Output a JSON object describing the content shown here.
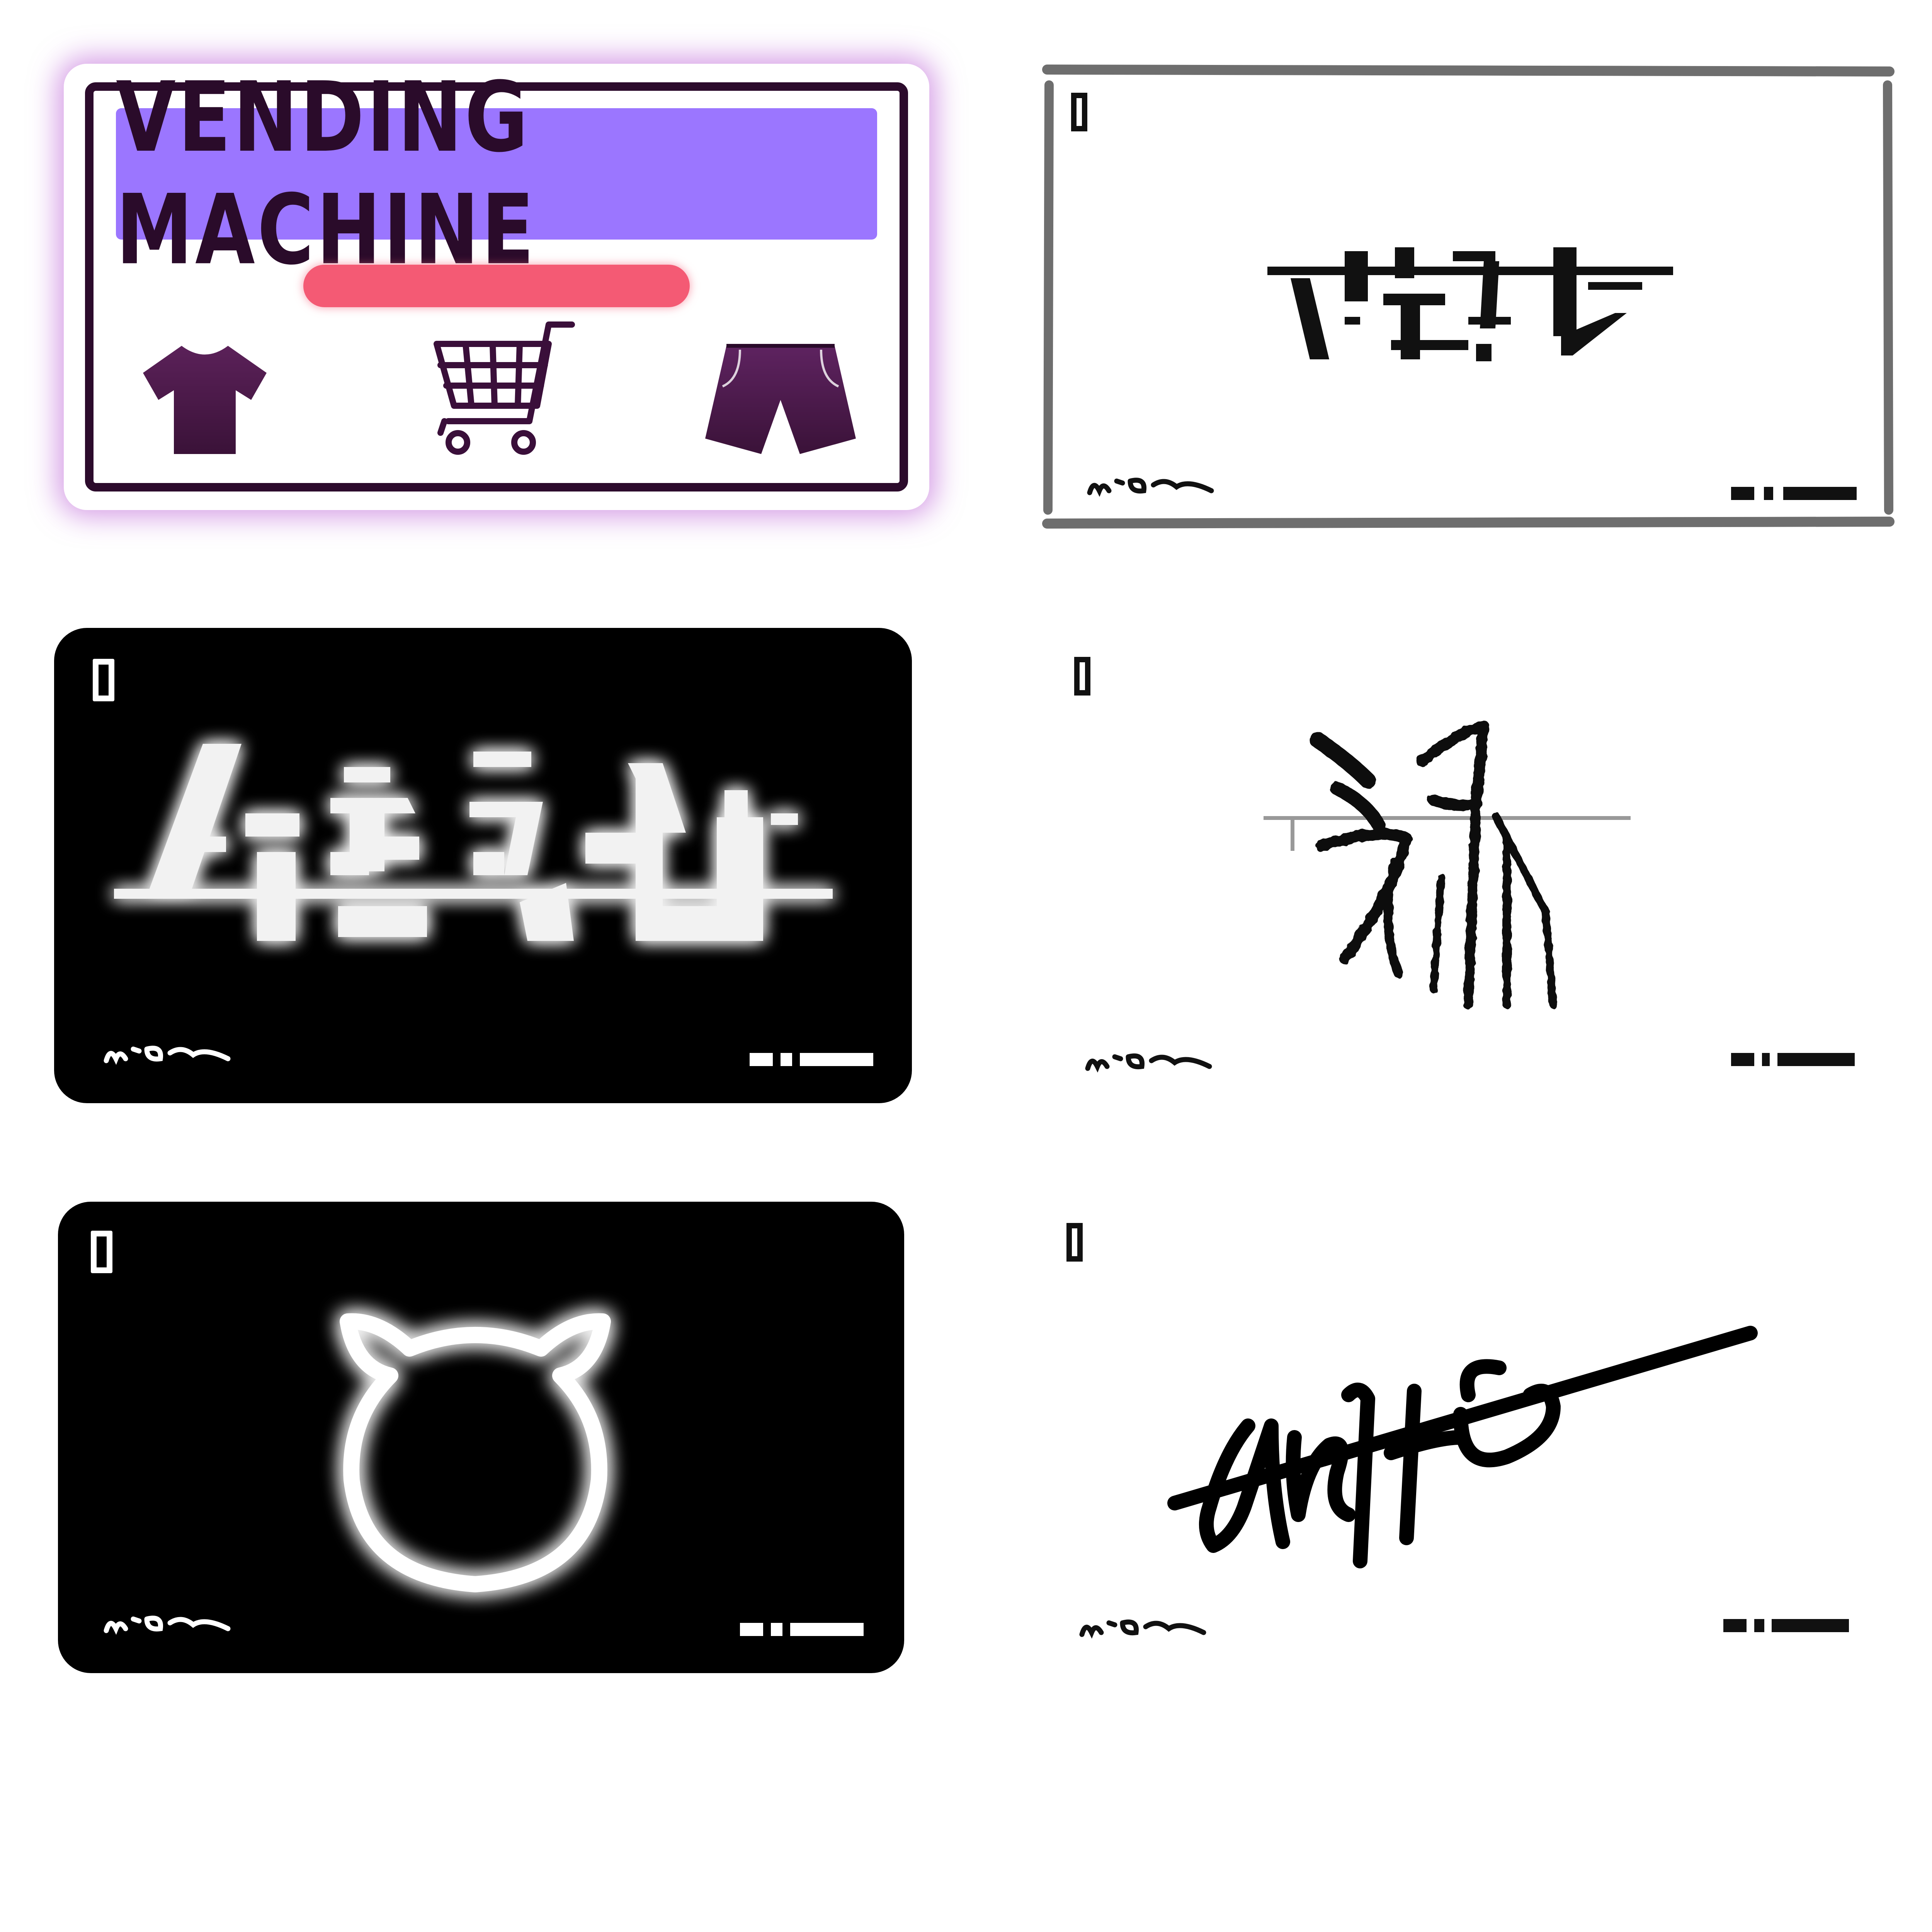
{
  "cards": {
    "vending": {
      "title": "VENDING MACHINE",
      "icons": [
        "tshirt-icon",
        "shopping-cart-icon",
        "shorts-icon"
      ],
      "colors": {
        "banner": "#9b76ff",
        "bar": "#f45a74",
        "ink": "#2c0b2c",
        "glow": "#b450d2"
      }
    },
    "frame": {
      "colors": {
        "frame": "#6e6e6e",
        "ink": "#111111"
      }
    },
    "neon_glyph": {
      "colors": {
        "background": "#000000",
        "neon": "#ffffff"
      }
    },
    "brush": {
      "colors": {
        "ink": "#111111",
        "rule": "#999999"
      }
    },
    "neon_cat": {
      "icons": [
        "cat-head-icon"
      ],
      "colors": {
        "background": "#000000",
        "neon": "#ffffff"
      }
    },
    "signature": {
      "colors": {
        "ink": "#000000"
      }
    }
  }
}
